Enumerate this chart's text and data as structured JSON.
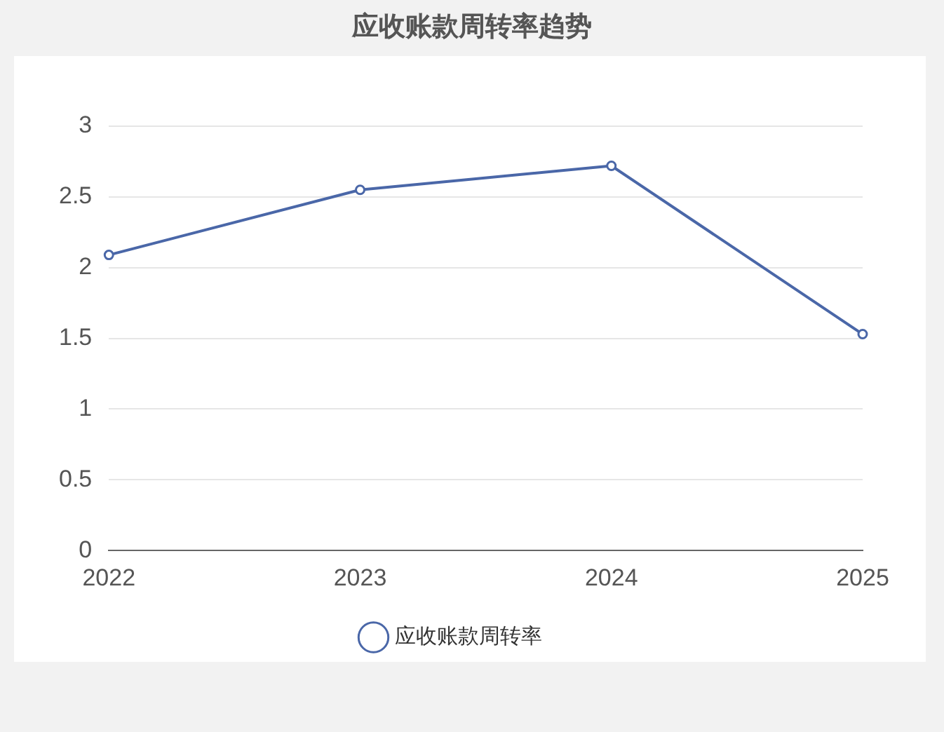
{
  "chart_data": {
    "type": "line",
    "title": "应收账款周转率趋势",
    "categories": [
      "2022",
      "2023",
      "2024",
      "2025"
    ],
    "series": [
      {
        "name": "应收账款周转率",
        "color": "#4a67a8",
        "values": [
          2.09,
          2.55,
          2.72,
          1.53
        ]
      }
    ],
    "ylim": [
      0,
      3
    ],
    "yticks": [
      0,
      0.5,
      1,
      1.5,
      2,
      2.5,
      3
    ],
    "grid": "y",
    "legend": "bottom",
    "marker": "circle"
  }
}
